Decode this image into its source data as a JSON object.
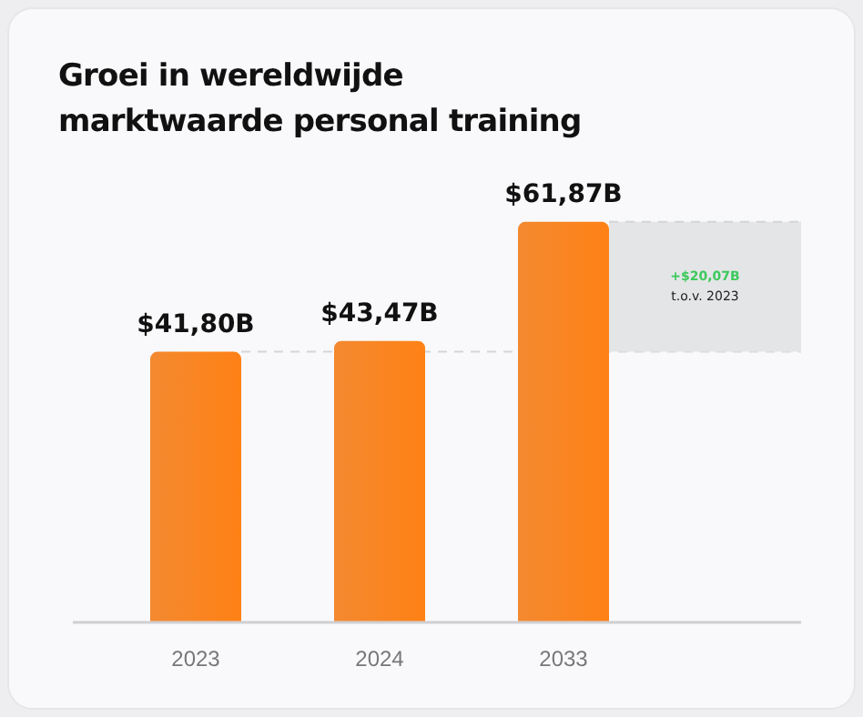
{
  "chart_data": {
    "type": "bar",
    "title": "Groei in wereldwijde\nmarktwaarde personal training",
    "categories": [
      "2023",
      "2024",
      "2033"
    ],
    "values": [
      41.8,
      43.47,
      61.87
    ],
    "value_labels": [
      "$41,80B",
      "$43,47B",
      "$61,87B"
    ],
    "color": "#f27a14",
    "ref_lines": [
      {
        "axis": "y",
        "value": 41.8,
        "line_style": "dashed",
        "color": "#d4d5d8"
      }
    ],
    "bands": [
      {
        "axis": "y",
        "from": 41.8,
        "to": 61.87,
        "color": "#e4e5e7"
      }
    ],
    "annotations": [
      "+$20,07B",
      "t.o.v. 2023"
    ]
  }
}
